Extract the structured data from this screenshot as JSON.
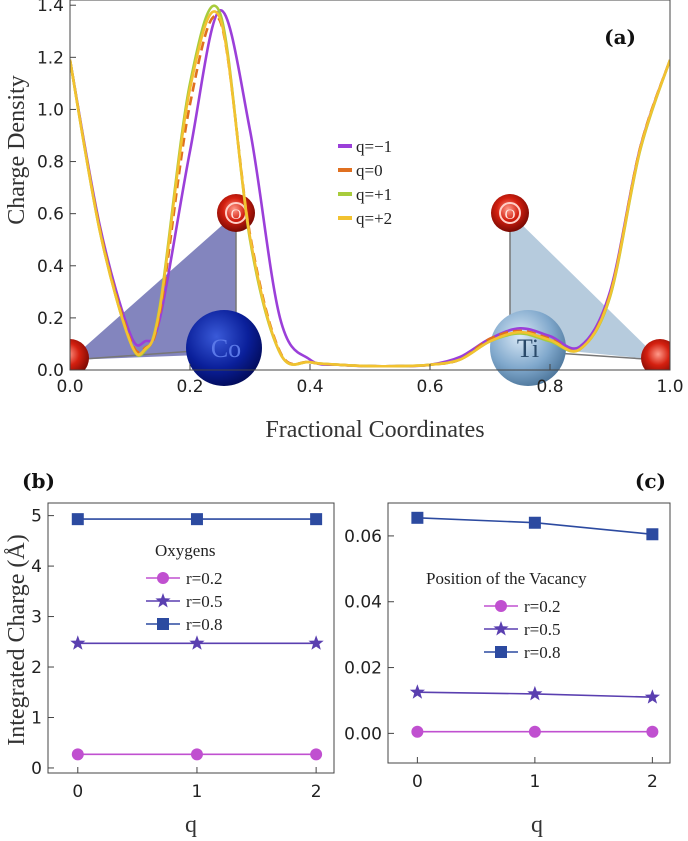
{
  "chart_data": [
    {
      "panel": "(a)",
      "type": "line",
      "xlabel": "Fractional Coordinates",
      "ylabel": "Charge Density",
      "xlim": [
        0,
        1
      ],
      "ylim": [
        0,
        1.42
      ],
      "xticks": [
        "0.0",
        "0.2",
        "0.4",
        "0.6",
        "0.8",
        "1.0"
      ],
      "yticks": [
        "0.0",
        "0.2",
        "0.4",
        "0.6",
        "0.8",
        "1.0",
        "1.2",
        "1.4"
      ],
      "x": [
        0,
        0.05,
        0.1,
        0.125,
        0.15,
        0.2,
        0.25,
        0.3,
        0.35,
        0.4,
        0.45,
        0.5,
        0.55,
        0.6,
        0.65,
        0.7,
        0.75,
        0.8,
        0.85,
        0.9,
        0.95,
        1.0
      ],
      "series": [
        {
          "name": "q=−1",
          "color": "#9b3fd9",
          "values": [
            1.19,
            0.55,
            0.14,
            0.11,
            0.2,
            0.84,
            1.38,
            0.92,
            0.2,
            0.04,
            0.02,
            0.015,
            0.015,
            0.02,
            0.05,
            0.12,
            0.16,
            0.13,
            0.09,
            0.3,
            0.85,
            1.19
          ]
        },
        {
          "name": "q=0",
          "color": "#e07020",
          "values": [
            1.19,
            0.54,
            0.12,
            0.085,
            0.22,
            1.02,
            1.34,
            0.52,
            0.07,
            0.03,
            0.02,
            0.015,
            0.015,
            0.02,
            0.04,
            0.12,
            0.15,
            0.12,
            0.08,
            0.29,
            0.85,
            1.19
          ]
        },
        {
          "name": "q=+1",
          "color": "#a8cc3c",
          "values": [
            1.19,
            0.53,
            0.11,
            0.075,
            0.25,
            1.1,
            1.37,
            0.5,
            0.065,
            0.03,
            0.02,
            0.015,
            0.015,
            0.02,
            0.04,
            0.11,
            0.14,
            0.11,
            0.08,
            0.28,
            0.84,
            1.19
          ]
        },
        {
          "name": "q=+2",
          "color": "#f2c230",
          "values": [
            1.19,
            0.53,
            0.11,
            0.08,
            0.24,
            1.08,
            1.35,
            0.51,
            0.066,
            0.03,
            0.02,
            0.015,
            0.015,
            0.02,
            0.04,
            0.11,
            0.145,
            0.115,
            0.08,
            0.285,
            0.845,
            1.19
          ]
        }
      ],
      "annotations": [
        "O",
        "Co",
        "O",
        "Ti"
      ]
    },
    {
      "panel": "(b)",
      "type": "line",
      "xlabel": "q",
      "ylabel": "Integrated Charge (Å)",
      "legend_title": "Oxygens",
      "x": [
        0,
        1,
        2
      ],
      "xlim": [
        -0.25,
        2.15
      ],
      "ylim": [
        -0.1,
        5.25
      ],
      "xticks": [
        "0",
        "1",
        "2"
      ],
      "yticks": [
        "0",
        "1",
        "2",
        "3",
        "4",
        "5"
      ],
      "series": [
        {
          "name": "r=0.2",
          "color": "#c050d0",
          "marker": "circle",
          "values": [
            0.27,
            0.27,
            0.27
          ]
        },
        {
          "name": "r=0.5",
          "color": "#5a3fb0",
          "marker": "star",
          "values": [
            2.47,
            2.47,
            2.47
          ]
        },
        {
          "name": "r=0.8",
          "color": "#2c4aa0",
          "marker": "square",
          "values": [
            4.93,
            4.93,
            4.93
          ]
        }
      ]
    },
    {
      "panel": "(c)",
      "type": "line",
      "xlabel": "q",
      "ylabel": "",
      "legend_title": "Position of the Vacancy",
      "x": [
        0,
        1,
        2
      ],
      "xlim": [
        -0.25,
        2.15
      ],
      "ylim": [
        -0.009,
        0.07
      ],
      "xticks": [
        "0",
        "1",
        "2"
      ],
      "yticks": [
        "0.00",
        "0.02",
        "0.04",
        "0.06"
      ],
      "series": [
        {
          "name": "r=0.2",
          "color": "#c050d0",
          "marker": "circle",
          "values": [
            0.0005,
            0.0005,
            0.0005
          ]
        },
        {
          "name": "r=0.5",
          "color": "#5a3fb0",
          "marker": "star",
          "values": [
            0.0125,
            0.012,
            0.011
          ]
        },
        {
          "name": "r=0.8",
          "color": "#2c4aa0",
          "marker": "square",
          "values": [
            0.0655,
            0.064,
            0.0605
          ]
        }
      ]
    }
  ]
}
